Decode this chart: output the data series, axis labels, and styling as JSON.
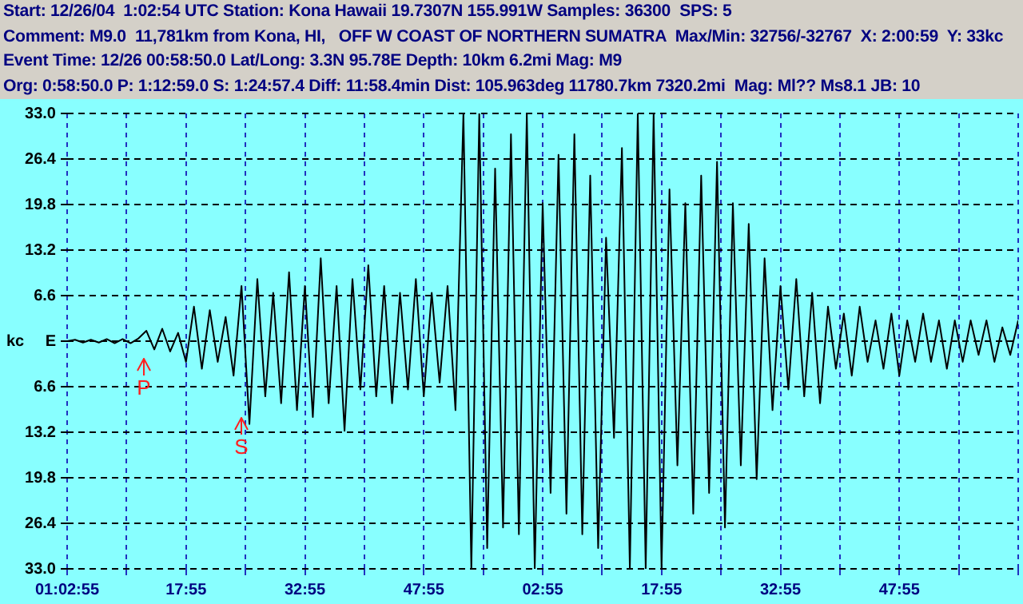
{
  "chart_data": {
    "type": "line",
    "title": "Start: 12/26/04  1:02:54 UTC Station: Kona Hawaii 19.7307N 155.991W Samples: 36300  SPS: 5",
    "subtitle": "Comment: M9.0  11,781km from Kona, HI,   OFF W COAST OF NORTHERN SUMATRA  Max/Min: 32756/-32767  X: 2:00:59  Y: 33kc",
    "annotations": [
      "Event Time: 12/26 00:58:50.0 Lat/Long: 3.3N 95.78E Depth: 10km 6.2mi Mag: M9",
      "Org: 0:58:50.0 P: 1:12:59.0 S: 1:24:57.4 Diff: 11:58.4min Dist: 105.963deg 11780.7km 7320.2mi  Mag: Ml?? Ms8.1 JB: 10",
      "P",
      "S"
    ],
    "ylabel": "kc",
    "categories": [
      "01:02:55",
      null,
      null,
      null,
      null,
      null,
      null,
      null,
      null,
      null,
      null,
      null,
      null,
      null,
      null,
      "17:55",
      null,
      null,
      null,
      null,
      null,
      null,
      null,
      null,
      null,
      null,
      null,
      null,
      null,
      null,
      "32:55",
      null,
      null,
      null,
      null,
      null,
      null,
      null,
      null,
      null,
      null,
      null,
      null,
      null,
      null,
      "47:55",
      null,
      null,
      null,
      null,
      null,
      null,
      null,
      null,
      null,
      null,
      null,
      null,
      null,
      null,
      "02:55",
      null,
      null,
      null,
      null,
      null,
      null,
      null,
      null,
      null,
      null,
      null,
      null,
      null,
      null,
      "17:55",
      null,
      null,
      null,
      null,
      null,
      null,
      null,
      null,
      null,
      null,
      null,
      null,
      null,
      null,
      "32:55",
      null,
      null,
      null,
      null,
      null,
      null,
      null,
      null,
      null,
      null,
      null,
      null,
      null,
      null,
      "47:55",
      null,
      null,
      null,
      null,
      null,
      null,
      null,
      null,
      null,
      null,
      null,
      null,
      null,
      null,
      null
    ],
    "series": [
      {
        "color": "#000000",
        "values": [
          0,
          0.2,
          -0.2,
          0.2,
          -0.2,
          0.3,
          -0.3,
          0.3,
          -0.3,
          0.4,
          1.5,
          -1.2,
          1.8,
          -1.5,
          1.2,
          -3,
          5,
          -4,
          4.5,
          -3,
          3.5,
          -5,
          8,
          -12,
          9,
          -8,
          7,
          -9,
          10,
          -10,
          8,
          -11,
          12,
          -9,
          8,
          -13,
          9,
          -7,
          11,
          -8,
          8,
          -9,
          7,
          -7,
          9,
          -8,
          7,
          -6,
          8,
          -10,
          33,
          -33,
          33,
          -30,
          25,
          -27,
          30,
          -28,
          33,
          -33,
          20,
          -22,
          27,
          -25,
          30,
          -28,
          24,
          -30,
          15,
          -14,
          28,
          -33,
          33,
          -33,
          33,
          -33,
          22,
          -18,
          20,
          -25,
          24,
          -22,
          26,
          -27,
          20,
          -18,
          17,
          -20,
          12,
          -10,
          8,
          -7,
          9,
          -8,
          7,
          -9,
          5,
          -4,
          4,
          -5,
          5,
          -3,
          3,
          -4,
          4,
          -5,
          3,
          -3,
          4,
          -3,
          3,
          -4,
          3,
          -3,
          3,
          -2,
          3,
          -3,
          2,
          -2,
          3
        ]
      }
    ],
    "ylim": [
      -33,
      33
    ],
    "yticks": [
      {
        "value": -33,
        "label": "33.0"
      },
      {
        "value": -26.4,
        "label": "26.4"
      },
      {
        "value": -19.8,
        "label": "19.8"
      },
      {
        "value": -13.2,
        "label": "13.2"
      },
      {
        "value": -6.6,
        "label": "6.6"
      },
      {
        "value": 0,
        "label": "E"
      },
      {
        "value": 6.6,
        "label": "6.6"
      },
      {
        "value": 13.2,
        "label": "13.2"
      },
      {
        "value": 19.8,
        "label": "19.8"
      },
      {
        "value": 26.4,
        "label": "26.4"
      },
      {
        "value": 33,
        "label": "33.0"
      }
    ],
    "grid": true,
    "legend": false,
    "marker": "none",
    "line_style": "solid"
  }
}
